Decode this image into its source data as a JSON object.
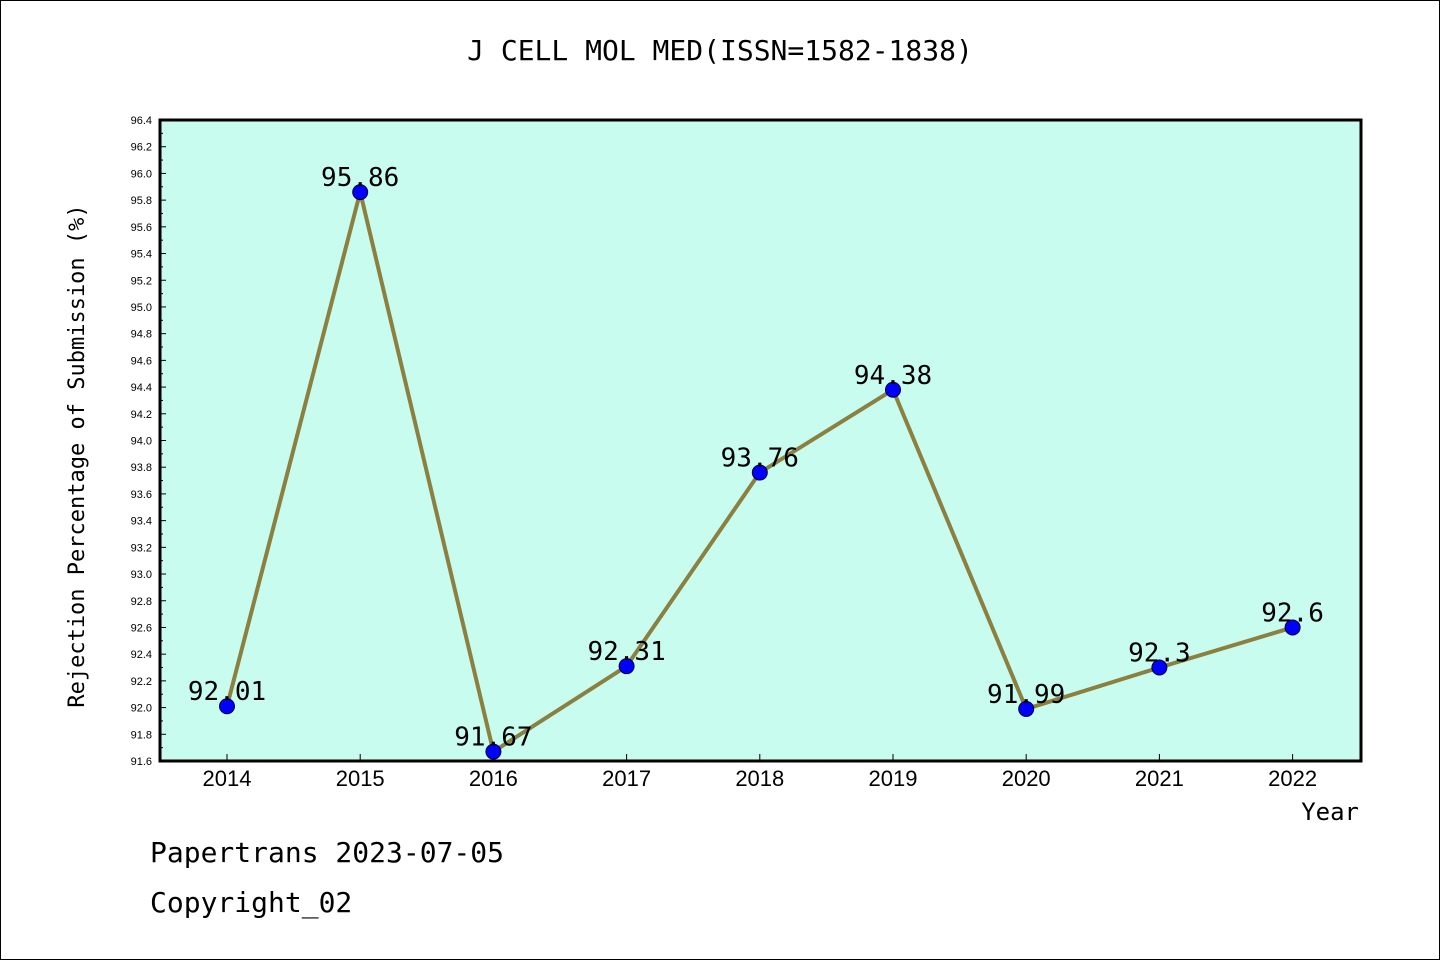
{
  "chart_data": {
    "type": "line",
    "title": "J CELL MOL MED(ISSN=1582-1838)",
    "xlabel": "Year",
    "ylabel": "Rejection Percentage of Submission (%)",
    "categories": [
      "2014",
      "2015",
      "2016",
      "2017",
      "2018",
      "2019",
      "2020",
      "2021",
      "2022"
    ],
    "values": [
      92.01,
      95.86,
      91.67,
      92.31,
      93.76,
      94.38,
      91.99,
      92.3,
      92.6
    ],
    "value_labels": [
      "92.01",
      "95.86",
      "91.67",
      "92.31",
      "93.76",
      "94.38",
      "91.99",
      "92.3",
      "92.6"
    ],
    "ylim": [
      91.6,
      96.4
    ],
    "yticks": [
      "91.6",
      "91.8",
      "92.0",
      "92.2",
      "92.4",
      "92.6",
      "92.8",
      "93.0",
      "93.2",
      "93.4",
      "93.6",
      "93.8",
      "94.0",
      "94.2",
      "94.4",
      "94.6",
      "94.8",
      "95.0",
      "95.2",
      "95.4",
      "95.6",
      "95.8",
      "96.0",
      "96.2",
      "96.4"
    ],
    "grid": false,
    "colors": {
      "plot_background": "#c8fcee",
      "line": "#8b8040",
      "marker": "#0000ff",
      "frame": "#000000"
    }
  },
  "footer": {
    "line1": "Papertrans 2023-07-05",
    "line2": "Copyright_02"
  }
}
